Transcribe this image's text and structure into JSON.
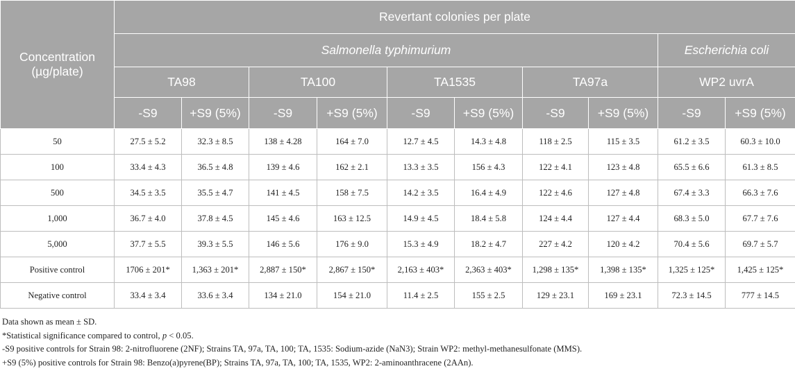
{
  "header": {
    "concentration_line1": "Concentration",
    "concentration_line2": "(µg/plate)",
    "revertant": "Revertant colonies per plate",
    "salmonella": "Salmonella typhimurium",
    "ecoli": "Escherichia coli",
    "strains": [
      "TA98",
      "TA100",
      "TA1535",
      "TA97a",
      "WP2 uvrA"
    ],
    "conditions": [
      "-S9",
      "+S9 (5%)",
      "-S9",
      "+S9 (5%)",
      "-S9",
      "+S9 (5%)",
      "-S9",
      "+S9 (5%)",
      "-S9",
      "+S9 (5%)"
    ]
  },
  "rows": [
    {
      "label": "50",
      "cells": [
        "27.5 ± 5.2",
        "32.3 ± 8.5",
        "138 ± 4.28",
        "164 ± 7.0",
        "12.7 ± 4.5",
        "14.3 ± 4.8",
        "118 ± 2.5",
        "115 ± 3.5",
        "61.2 ± 3.5",
        "60.3 ± 10.0"
      ]
    },
    {
      "label": "100",
      "cells": [
        "33.4 ± 4.3",
        "36.5 ± 4.8",
        "139 ± 4.6",
        "162 ± 2.1",
        "13.3 ± 3.5",
        "156 ± 4.3",
        "122 ± 4.1",
        "123 ± 4.8",
        "65.5 ± 6.6",
        "61.3 ± 8.5"
      ]
    },
    {
      "label": "500",
      "cells": [
        "34.5 ± 3.5",
        "35.5 ± 4.7",
        "141 ± 4.5",
        "158 ± 7.5",
        "14.2 ± 3.5",
        "16.4 ± 4.9",
        "122 ± 4.6",
        "127 ± 4.8",
        "67.4 ± 3.3",
        "66.3 ± 7.6"
      ]
    },
    {
      "label": "1,000",
      "cells": [
        "36.7 ± 4.0",
        "37.8 ± 4.5",
        "145 ± 4.6",
        "163 ± 12.5",
        "14.9 ± 4.5",
        "18.4 ± 5.8",
        "124 ± 4.4",
        "127 ± 4.4",
        "68.3 ± 5.0",
        "67.7 ± 7.6"
      ]
    },
    {
      "label": "5,000",
      "cells": [
        "37.7 ± 5.5",
        "39.3 ± 5.5",
        "146 ± 5.6",
        "176 ± 9.0",
        "15.3 ± 4.9",
        "18.2 ± 4.7",
        "227 ± 4.2",
        "120 ± 4.2",
        "70.4 ± 5.6",
        "69.7 ± 5.7"
      ]
    },
    {
      "label": "Positive control",
      "cells": [
        "1706 ± 201*",
        "1,363 ± 201*",
        "2,887 ± 150*",
        "2,867 ± 150*",
        "2,163 ± 403*",
        "2,363 ± 403*",
        "1,298 ± 135*",
        "1,398 ± 135*",
        "1,325 ± 125*",
        "1,425 ± 125*"
      ]
    },
    {
      "label": "Negative control",
      "cells": [
        "33.4 ± 3.4",
        "33.6 ± 3.4",
        "134 ± 21.0",
        "154 ± 21.0",
        "11.4 ± 2.5",
        "155 ± 2.5",
        "129 ± 23.1",
        "169 ± 23.1",
        "72.3 ± 14.5",
        "777 ± 14.5"
      ]
    }
  ],
  "notes": {
    "mean_sd": "Data shown as mean ± SD.",
    "significance_prefix": "*Statistical significance compared to control, ",
    "significance_p": "p",
    "significance_suffix": " < 0.05.",
    "minus_s9": "-S9 positive controls for Strain 98: 2-nitrofluorene (2NF); Strains TA, 97a, TA, 100; TA, 1535: Sodium-azide (NaN3); Strain WP2: methyl-methanesulfonate (MMS).",
    "plus_s9": "+S9 (5%) positive controls for Strain 98: Benzo(a)pyrene(BP); Strains TA, 97a, TA, 100; TA, 1535, WP2: 2-aminoanthracene (2AAn)."
  }
}
